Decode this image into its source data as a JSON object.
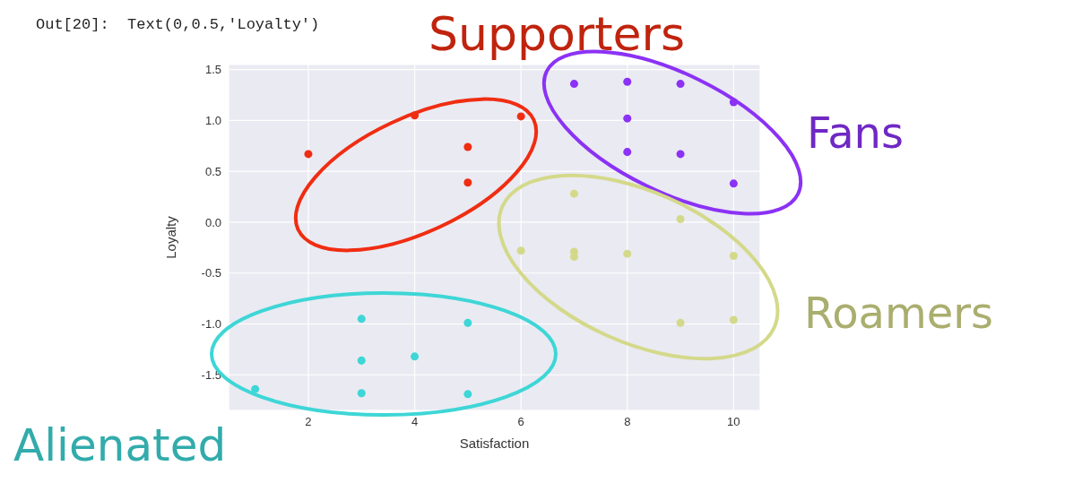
{
  "chart_data": {
    "type": "scatter",
    "xlabel": "Satisfaction",
    "ylabel": "Loyalty",
    "annotations": [
      "Out[20]:  Text(0,0.5,'Loyalty')"
    ],
    "xlim": [
      0.5,
      10.5
    ],
    "ylim": [
      -1.85,
      1.55
    ],
    "xticks": [
      2,
      4,
      6,
      8,
      10
    ],
    "yticks": [
      {
        "value": -1.5,
        "label": "-1.5"
      },
      {
        "value": -1,
        "label": "-1.0"
      },
      {
        "value": -0.5,
        "label": "-0.5"
      },
      {
        "value": 0,
        "label": "0.0"
      },
      {
        "value": 0.5,
        "label": "0.5"
      },
      {
        "value": 1,
        "label": "1.0"
      },
      {
        "value": 1.5,
        "label": "1.5"
      }
    ],
    "grid": true,
    "legend": false,
    "marker": "circle",
    "series": [
      {
        "name": "Supporters",
        "color": "#f02d12",
        "x": [
          2,
          4,
          5,
          5,
          6
        ],
        "values": [
          0.67,
          1.05,
          0.74,
          0.39,
          1.04
        ]
      },
      {
        "name": "Fans",
        "color": "#8b32f5",
        "x": [
          7,
          8,
          9,
          10,
          8,
          8,
          9,
          10
        ],
        "values": [
          1.36,
          1.38,
          1.36,
          1.18,
          1.02,
          0.69,
          0.67,
          0.38
        ]
      },
      {
        "name": "Roamers",
        "color": "#d4d98a",
        "x": [
          7,
          9,
          6,
          7,
          7,
          8,
          10,
          9,
          10
        ],
        "values": [
          0.28,
          0.03,
          -0.28,
          -0.29,
          -0.34,
          -0.31,
          -0.33,
          -0.99,
          -0.96
        ]
      },
      {
        "name": "Alienated",
        "color": "#3ed6d6",
        "x": [
          1,
          3,
          3,
          4,
          3,
          5,
          5
        ],
        "values": [
          -1.64,
          -0.95,
          -1.36,
          -1.32,
          -1.68,
          -0.99,
          -1.69
        ]
      }
    ]
  }
}
